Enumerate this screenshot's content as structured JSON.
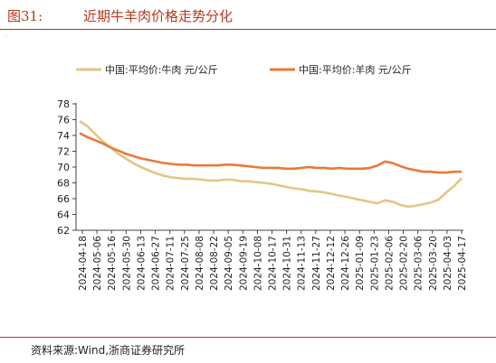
{
  "header": {
    "figure_number": "图31:",
    "title": "近期牛羊肉价格走势分化"
  },
  "footer": {
    "source": "资料来源:Wind,浙商证券研究所"
  },
  "chart_data": {
    "type": "line",
    "ylim": [
      62,
      78
    ],
    "yticks": [
      62,
      64,
      66,
      68,
      70,
      72,
      74,
      76,
      78
    ],
    "grid": false,
    "legend_position": "top",
    "x_tick_labels": [
      "2024-04-18",
      "2024-05-06",
      "2024-05-16",
      "2024-05-30",
      "2024-06-13",
      "2024-06-27",
      "2024-07-11",
      "2024-07-25",
      "2024-08-08",
      "2024-08-22",
      "2024-09-05",
      "2024-09-19",
      "2024-10-08",
      "2024-10-17",
      "2024-10-31",
      "2024-11-13",
      "2024-11-27",
      "2024-12-12",
      "2024-12-26",
      "2025-01-09",
      "2025-01-23",
      "2025-02-06",
      "2025-02-20",
      "2025-03-06",
      "2025-03-20",
      "2025-04-03",
      "2025-04-17"
    ],
    "series": [
      {
        "name": "中国:平均价:牛肉 元/公斤",
        "color": "#e3c683",
        "values": [
          75.8,
          75.2,
          74.2,
          73.3,
          72.5,
          71.7,
          71.1,
          70.5,
          70.0,
          69.6,
          69.2,
          68.9,
          68.7,
          68.6,
          68.5,
          68.5,
          68.4,
          68.3,
          68.3,
          68.4,
          68.4,
          68.2,
          68.2,
          68.1,
          68.0,
          67.9,
          67.7,
          67.5,
          67.3,
          67.2,
          67.0,
          66.9,
          66.8,
          66.6,
          66.4,
          66.2,
          66.0,
          65.8,
          65.6,
          65.4,
          65.8,
          65.6,
          65.2,
          65.0,
          65.1,
          65.3,
          65.5,
          65.9,
          66.8,
          67.6,
          68.6
        ]
      },
      {
        "name": "中国:平均价:羊肉 元/公斤",
        "color": "#e87a3a",
        "values": [
          74.3,
          73.8,
          73.4,
          73.0,
          72.5,
          72.1,
          71.7,
          71.4,
          71.1,
          70.9,
          70.7,
          70.5,
          70.4,
          70.3,
          70.3,
          70.2,
          70.2,
          70.2,
          70.2,
          70.3,
          70.3,
          70.2,
          70.1,
          70.0,
          69.9,
          69.9,
          69.9,
          69.8,
          69.8,
          69.9,
          70.0,
          69.9,
          69.9,
          69.8,
          69.9,
          69.8,
          69.8,
          69.8,
          69.9,
          70.2,
          70.7,
          70.5,
          70.1,
          69.8,
          69.6,
          69.4,
          69.4,
          69.3,
          69.3,
          69.4,
          69.4
        ]
      }
    ]
  }
}
